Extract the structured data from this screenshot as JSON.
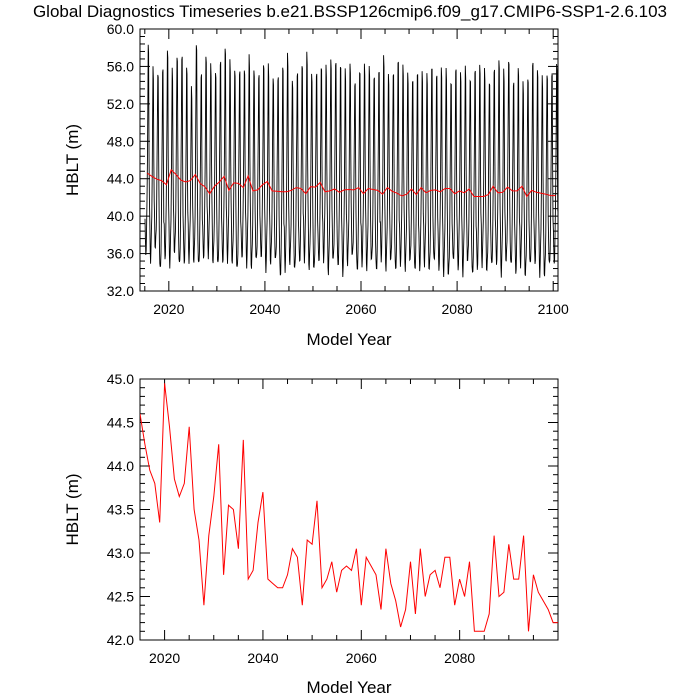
{
  "title": "Global Diagnostics Timeseries b.e21.BSSP126cmip6.f09_g17.CMIP6-SSP1-2.6.103",
  "colors": {
    "monthly": "#000000",
    "annual": "#ff0000"
  },
  "chart_data": [
    {
      "type": "line",
      "xlabel": "Model Year",
      "ylabel": "HBLT (m)",
      "xlim": [
        2014,
        2101
      ],
      "ylim": [
        32.0,
        60.0
      ],
      "xticks": [
        2020,
        2040,
        2060,
        2080,
        2100
      ],
      "yticks": [
        "32.0",
        "36.0",
        "40.0",
        "44.0",
        "48.0",
        "52.0",
        "56.0",
        "60.0"
      ],
      "grid": false,
      "series": [
        {
          "key": "monthly",
          "start_year": 2015,
          "months_per_year": 12,
          "monthly_cycle_template": [
            39.5,
            37.0,
            36.2,
            37.0,
            38.5,
            40.8,
            45.0,
            50.0,
            55.5,
            55.0,
            46.5,
            41.5
          ],
          "annual_peak_values": [
            57.8,
            55.7,
            55.6,
            55.7,
            57.2,
            55.5,
            57.4,
            57.1,
            55.4,
            53.5,
            58.7,
            55.2,
            56.6,
            55.9,
            55.7,
            56.6,
            57.5,
            56.3,
            55.9,
            55.6,
            55.2,
            56.8,
            55.9,
            55.2,
            55.8,
            55.8,
            55.0,
            55.0,
            55.6,
            56.9,
            54.7,
            55.5,
            55.8,
            57.0,
            55.4,
            55.5,
            55.6,
            55.6,
            56.9,
            56.7,
            55.8,
            55.2,
            56.4,
            54.5,
            55.2,
            55.7,
            56.1,
            55.2,
            55.3,
            56.6,
            55.2,
            55.6,
            56.4,
            55.6,
            55.3,
            54.9,
            55.1,
            54.9,
            55.2,
            56.3,
            54.9,
            55.3,
            55.7,
            54.7,
            55.6,
            54.8,
            55.9,
            55.0,
            55.5,
            55.6,
            55.6,
            54.7,
            55.6,
            56.1,
            55.5,
            57.0,
            54.2,
            55.3,
            54.1,
            55.1,
            56.4,
            55.1,
            54.7,
            55.5,
            55.3,
            55.8
          ],
          "annual_min_values": [
            36.0,
            35.5,
            36.5,
            34.0,
            35.5,
            35.0,
            36.0,
            34.5,
            35.0,
            35.5,
            35.0,
            34.5,
            35.5,
            36.0,
            35.0,
            34.5,
            35.0,
            35.5,
            35.0,
            34.0,
            35.5,
            35.0,
            34.5,
            35.0,
            35.5,
            34.5,
            35.0,
            35.0,
            33.5,
            34.5,
            35.0,
            34.0,
            35.0,
            35.5,
            34.5,
            34.0,
            35.0,
            35.5,
            34.0,
            35.0,
            34.5,
            34.0,
            35.0,
            35.5,
            34.0,
            35.0,
            34.5,
            35.0,
            34.0,
            35.5,
            34.5,
            35.0,
            34.0,
            35.0,
            34.5,
            35.0,
            34.0,
            34.5,
            35.0,
            34.0,
            35.0,
            34.5,
            34.0,
            33.5,
            35.0,
            34.5,
            34.0,
            35.0,
            33.5,
            34.5,
            35.0,
            34.0,
            34.5,
            35.0,
            34.0,
            35.0,
            34.5,
            34.0,
            35.0,
            33.5,
            34.5,
            35.0,
            34.0,
            33.5,
            34.5,
            35.0
          ]
        },
        {
          "key": "annual",
          "x": [
            2015,
            2016,
            2017,
            2018,
            2019,
            2020,
            2021,
            2022,
            2023,
            2024,
            2025,
            2026,
            2027,
            2028,
            2029,
            2030,
            2031,
            2032,
            2033,
            2034,
            2035,
            2036,
            2037,
            2038,
            2039,
            2040,
            2041,
            2042,
            2043,
            2044,
            2045,
            2046,
            2047,
            2048,
            2049,
            2050,
            2051,
            2052,
            2053,
            2054,
            2055,
            2056,
            2057,
            2058,
            2059,
            2060,
            2061,
            2062,
            2063,
            2064,
            2065,
            2066,
            2067,
            2068,
            2069,
            2070,
            2071,
            2072,
            2073,
            2074,
            2075,
            2076,
            2077,
            2078,
            2079,
            2080,
            2081,
            2082,
            2083,
            2084,
            2085,
            2086,
            2087,
            2088,
            2089,
            2090,
            2091,
            2092,
            2093,
            2094,
            2095,
            2096,
            2097,
            2098,
            2099,
            2100
          ],
          "y": [
            44.6,
            44.25,
            43.95,
            43.8,
            43.35,
            44.95,
            44.45,
            43.85,
            43.65,
            43.8,
            44.45,
            43.5,
            43.15,
            42.4,
            43.2,
            43.65,
            44.25,
            42.75,
            43.55,
            43.5,
            43.05,
            44.3,
            42.7,
            42.8,
            43.35,
            43.7,
            42.7,
            42.65,
            42.6,
            42.6,
            42.75,
            43.05,
            42.95,
            42.4,
            43.15,
            43.1,
            43.6,
            42.6,
            42.7,
            42.9,
            42.55,
            42.8,
            42.85,
            42.8,
            43.05,
            42.4,
            42.95,
            42.85,
            42.75,
            42.35,
            43.05,
            42.65,
            42.45,
            42.15,
            42.35,
            42.9,
            42.3,
            43.05,
            42.5,
            42.75,
            42.8,
            42.6,
            42.95,
            42.95,
            42.4,
            42.7,
            42.5,
            42.9,
            42.1,
            42.1,
            42.1,
            42.3,
            43.2,
            42.5,
            42.55,
            43.1,
            42.7,
            42.7,
            43.2,
            42.1,
            42.75,
            42.55,
            42.45,
            42.35,
            42.2,
            42.2
          ]
        }
      ]
    },
    {
      "type": "line",
      "xlabel": "Model Year",
      "ylabel": "HBLT (m)",
      "xlim": [
        2015,
        2100
      ],
      "ylim": [
        42.0,
        45.0
      ],
      "xticks": [
        2020,
        2040,
        2060,
        2080
      ],
      "yticks": [
        "42.0",
        "42.5",
        "43.0",
        "43.5",
        "44.0",
        "44.5",
        "45.0"
      ],
      "grid": false,
      "series": [
        {
          "key": "annual",
          "x": [
            2015,
            2016,
            2017,
            2018,
            2019,
            2020,
            2021,
            2022,
            2023,
            2024,
            2025,
            2026,
            2027,
            2028,
            2029,
            2030,
            2031,
            2032,
            2033,
            2034,
            2035,
            2036,
            2037,
            2038,
            2039,
            2040,
            2041,
            2042,
            2043,
            2044,
            2045,
            2046,
            2047,
            2048,
            2049,
            2050,
            2051,
            2052,
            2053,
            2054,
            2055,
            2056,
            2057,
            2058,
            2059,
            2060,
            2061,
            2062,
            2063,
            2064,
            2065,
            2066,
            2067,
            2068,
            2069,
            2070,
            2071,
            2072,
            2073,
            2074,
            2075,
            2076,
            2077,
            2078,
            2079,
            2080,
            2081,
            2082,
            2083,
            2084,
            2085,
            2086,
            2087,
            2088,
            2089,
            2090,
            2091,
            2092,
            2093,
            2094,
            2095,
            2096,
            2097,
            2098,
            2099,
            2100
          ],
          "y": [
            44.6,
            44.25,
            43.95,
            43.8,
            43.35,
            44.95,
            44.45,
            43.85,
            43.65,
            43.8,
            44.45,
            43.5,
            43.15,
            42.4,
            43.2,
            43.65,
            44.25,
            42.75,
            43.55,
            43.5,
            43.05,
            44.3,
            42.7,
            42.8,
            43.35,
            43.7,
            42.7,
            42.65,
            42.6,
            42.6,
            42.75,
            43.05,
            42.95,
            42.4,
            43.15,
            43.1,
            43.6,
            42.6,
            42.7,
            42.9,
            42.55,
            42.8,
            42.85,
            42.8,
            43.05,
            42.4,
            42.95,
            42.85,
            42.75,
            42.35,
            43.05,
            42.65,
            42.45,
            42.15,
            42.35,
            42.9,
            42.3,
            43.05,
            42.5,
            42.75,
            42.8,
            42.6,
            42.95,
            42.95,
            42.4,
            42.7,
            42.5,
            42.9,
            42.1,
            42.1,
            42.1,
            42.3,
            43.2,
            42.5,
            42.55,
            43.1,
            42.7,
            42.7,
            43.2,
            42.1,
            42.75,
            42.55,
            42.45,
            42.35,
            42.2,
            42.2
          ]
        }
      ]
    }
  ]
}
